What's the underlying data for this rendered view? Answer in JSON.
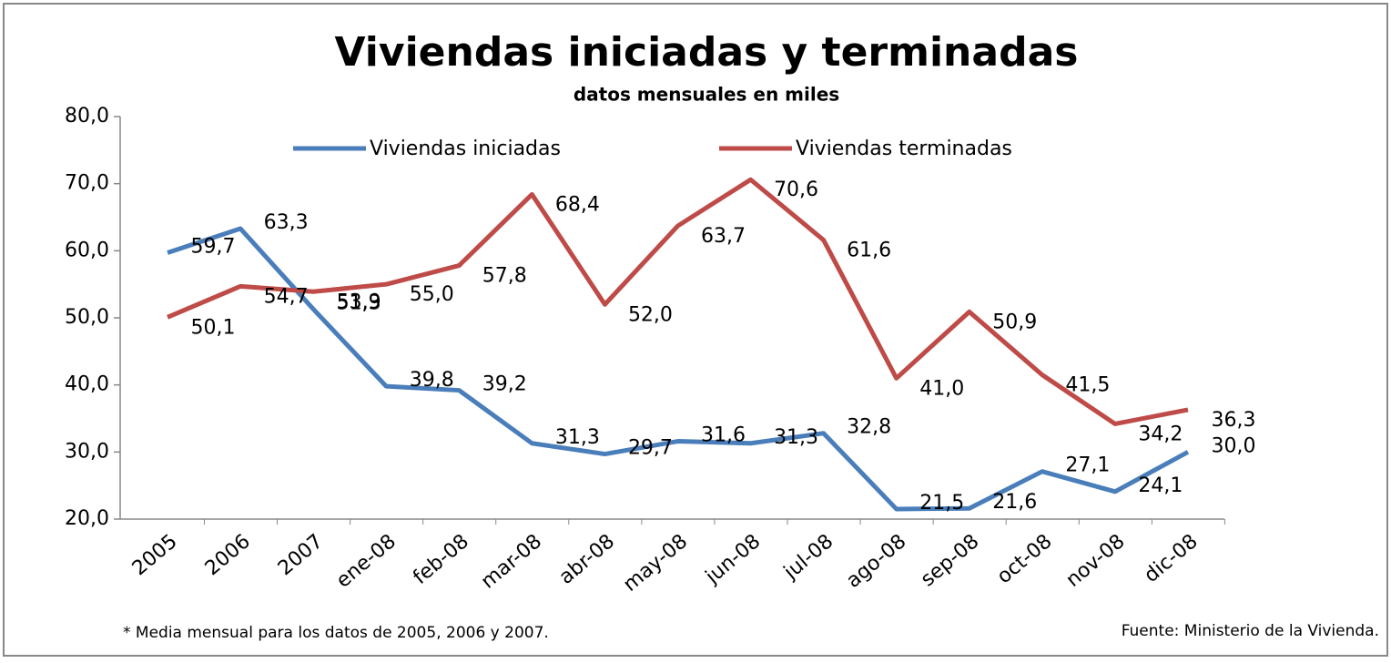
{
  "chart_data": {
    "type": "line",
    "title": "Viviendas iniciadas y terminadas",
    "subtitle": "datos mensuales en miles",
    "categories": [
      "2005",
      "2006",
      "2007",
      "ene-08",
      "feb-08",
      "mar-08",
      "abr-08",
      "may-08",
      "jun-08",
      "jul-08",
      "ago-08",
      "sep-08",
      "oct-08",
      "nov-08",
      "dic-08"
    ],
    "series": [
      {
        "name": "Viviendas iniciadas",
        "color": "#4a7ebb",
        "values": [
          59.7,
          63.3,
          51.3,
          39.8,
          39.2,
          31.3,
          29.7,
          31.6,
          31.3,
          32.8,
          21.5,
          21.6,
          27.1,
          24.1,
          30.0
        ],
        "value_labels": [
          "59,7",
          "63,3",
          "51,3",
          "39,8",
          "39,2",
          "31,3",
          "29,7",
          "31,6",
          "31,3",
          "32,8",
          "21,5",
          "21,6",
          "27,1",
          "24,1",
          "30,0"
        ]
      },
      {
        "name": "Viviendas terminadas",
        "color": "#be4b48",
        "values": [
          50.1,
          54.7,
          53.9,
          55.0,
          57.8,
          68.4,
          52.0,
          63.7,
          70.6,
          61.6,
          41.0,
          50.9,
          41.5,
          34.2,
          36.3
        ],
        "value_labels": [
          "50,1",
          "54,7",
          "53,9",
          "55,0",
          "57,8",
          "68,4",
          "52,0",
          "63,7",
          "70,6",
          "61,6",
          "41,0",
          "50,9",
          "41,5",
          "34,2",
          "36,3"
        ]
      }
    ],
    "ylim": [
      20,
      80
    ],
    "yticks": [
      {
        "value": 20,
        "label": "20,0"
      },
      {
        "value": 30,
        "label": "30,0"
      },
      {
        "value": 40,
        "label": "40,0"
      },
      {
        "value": 50,
        "label": "50,0"
      },
      {
        "value": 60,
        "label": "60,0"
      },
      {
        "value": 70,
        "label": "70,0"
      },
      {
        "value": 80,
        "label": "80,0"
      }
    ],
    "legend": "top",
    "notes": [
      "* Media mensual para los datos de 2005, 2006 y 2007.",
      "Fuente: Ministerio de la Vivienda."
    ]
  }
}
